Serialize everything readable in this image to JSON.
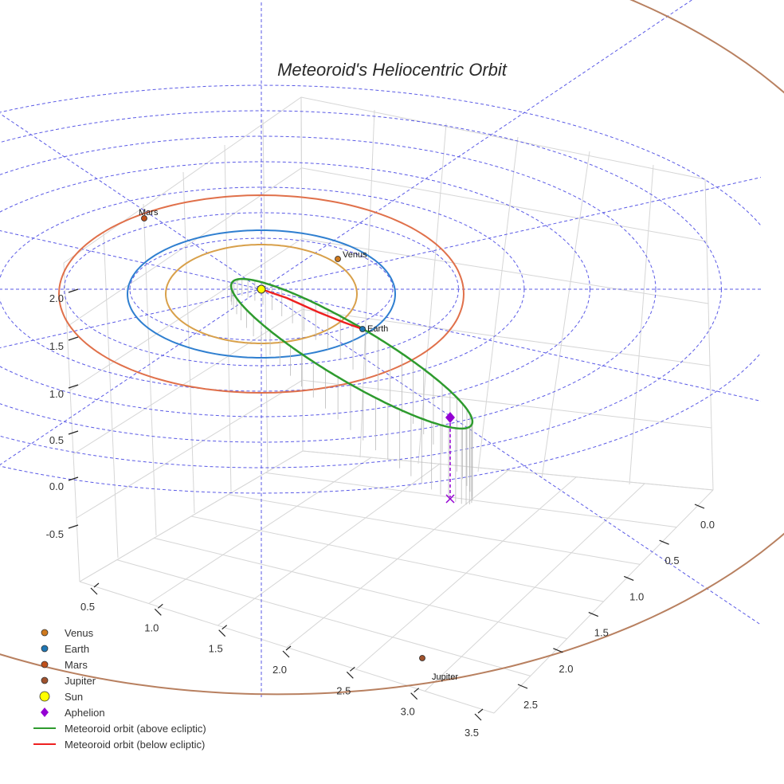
{
  "chart_data": {
    "type": "line",
    "projection": "3d",
    "title": "Meteoroid's Heliocentric Orbit",
    "axes": {
      "vertical_ticks": [
        "-0.5",
        "0.0",
        "0.5",
        "1.0",
        "1.5",
        "2.0"
      ],
      "front_left_ticks": [
        "0.5",
        "1.0",
        "1.5",
        "2.0",
        "2.5",
        "3.0",
        "3.5"
      ],
      "front_right_ticks": [
        "0.0",
        "0.5",
        "1.0",
        "1.5",
        "2.0",
        "2.5"
      ]
    },
    "planet_orbits_au": [
      {
        "name": "Venus",
        "radius": 0.72,
        "color": "#d8a04a"
      },
      {
        "name": "Earth",
        "radius": 1.0,
        "color": "#2f7fd0"
      },
      {
        "name": "Mars",
        "radius": 1.52,
        "color": "#e0704a"
      },
      {
        "name": "Jupiter",
        "radius": 5.2,
        "color": "#b88060"
      }
    ],
    "ecliptic_grid_circles_au": [
      1.0,
      1.5,
      2.0,
      2.5,
      3.0,
      3.5,
      4.0
    ],
    "points": [
      {
        "name": "Venus",
        "label": "Venus",
        "color": "#cf7a1e"
      },
      {
        "name": "Earth",
        "label": "Earth",
        "color": "#1f77b4"
      },
      {
        "name": "Mars",
        "label": "Mars",
        "color": "#c0501a"
      },
      {
        "name": "Jupiter",
        "label": "Jupiter",
        "color": "#a0522d"
      },
      {
        "name": "Sun",
        "color": "#ffff00"
      },
      {
        "name": "Aphelion",
        "color": "#9400d3"
      }
    ],
    "meteoroid_orbit": {
      "semi_major_axis_au": 1.85,
      "perihelion_au": 0.06,
      "aphelion_au": 3.64,
      "above_ecliptic_color": "#2e9b2e",
      "below_ecliptic_color": "#ee2020"
    },
    "legend": [
      {
        "label": "Venus",
        "marker": "circle",
        "color": "#cf7a1e"
      },
      {
        "label": "Earth",
        "marker": "circle",
        "color": "#1f77b4"
      },
      {
        "label": "Mars",
        "marker": "circle",
        "color": "#c0501a"
      },
      {
        "label": "Jupiter",
        "marker": "circle",
        "color": "#a0522d"
      },
      {
        "label": "Sun",
        "marker": "big-circle",
        "color": "#ffff00"
      },
      {
        "label": "Aphelion",
        "marker": "diamond",
        "color": "#9400d3"
      },
      {
        "label": "Meteoroid orbit (above ecliptic)",
        "marker": "line",
        "color": "#2e9b2e"
      },
      {
        "label": "Meteoroid orbit (below ecliptic)",
        "marker": "line",
        "color": "#ee2020"
      }
    ]
  }
}
